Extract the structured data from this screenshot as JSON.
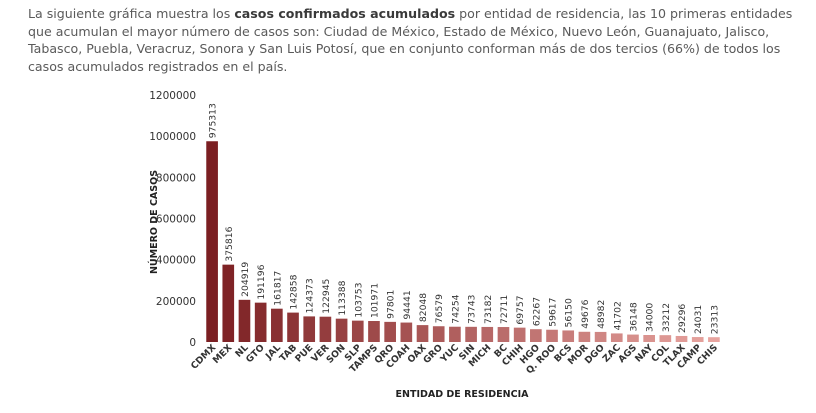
{
  "intro": {
    "before": "La siguiente gráfica muestra los ",
    "bold": "casos confirmados acumulados",
    "after": " por entidad de residencia, las 10 primeras entidades que acumulan el mayor número de casos son: Ciudad de México, Estado de México, Nuevo León, Guanajuato, Jalisco, Tabasco, Puebla, Veracruz, Sonora y San Luis Potosí, que en conjunto conforman más de dos tercios (66%) de todos los casos acumulados registrados en el país."
  },
  "chart_data": {
    "type": "bar",
    "title": "",
    "xlabel": "ENTIDAD DE RESIDENCIA",
    "ylabel": "NÚMERO DE CASOS",
    "ylim": [
      0,
      1200000
    ],
    "yticks": [
      0,
      200000,
      400000,
      600000,
      800000,
      1000000,
      1200000
    ],
    "grid": false,
    "legend": "none",
    "categories": [
      "CDMX",
      "MEX",
      "NL",
      "GTO",
      "JAL",
      "TAB",
      "PUE",
      "VER",
      "SON",
      "SLP",
      "TAMPS",
      "QRO",
      "COAH",
      "OAX",
      "GRO",
      "YUC",
      "SIN",
      "MICH",
      "BC",
      "CHIH",
      "HGO",
      "Q. ROO",
      "BCS",
      "MOR",
      "DGO",
      "ZAC",
      "AGS",
      "NAY",
      "COL",
      "TLAX",
      "CAMP",
      "CHIS"
    ],
    "values": [
      975313,
      375816,
      204919,
      191196,
      161817,
      142858,
      124373,
      122945,
      113388,
      103753,
      101971,
      97801,
      94441,
      82048,
      76579,
      74254,
      73743,
      73182,
      72711,
      69757,
      62267,
      59617,
      56150,
      49676,
      48982,
      41702,
      36148,
      34000,
      33212,
      29296,
      24031,
      23313
    ],
    "colors_gradient": [
      "#7b1f22",
      "#e8a49f"
    ]
  }
}
